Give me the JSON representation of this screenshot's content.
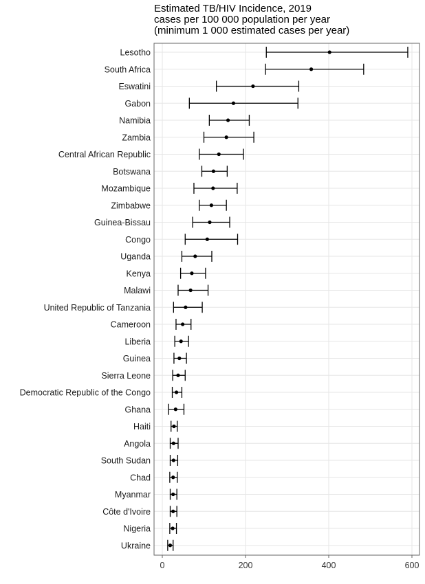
{
  "chart_data": {
    "type": "scatter",
    "subtype": "point-with-error-bars (dot plot)",
    "title": "Estimated TB/HIV Incidence, 2019",
    "subtitle_lines": [
      "cases per 100 000 population per year",
      "(minimum 1 000 estimated cases per year)"
    ],
    "xlabel": "",
    "ylabel": "",
    "xlim": [
      0,
      600
    ],
    "xticks": [
      0,
      200,
      400,
      600
    ],
    "xtick_labels": [
      "0",
      "200",
      "400",
      "600"
    ],
    "grid": true,
    "legend": "none",
    "categories": [
      "Lesotho",
      "South Africa",
      "Eswatini",
      "Gabon",
      "Namibia",
      "Zambia",
      "Central African Republic",
      "Botswana",
      "Mozambique",
      "Zimbabwe",
      "Guinea-Bissau",
      "Congo",
      "Uganda",
      "Kenya",
      "Malawi",
      "United Republic of Tanzania",
      "Cameroon",
      "Liberia",
      "Guinea",
      "Sierra Leone",
      "Democratic Republic of the Congo",
      "Ghana",
      "Haiti",
      "Angola",
      "South Sudan",
      "Chad",
      "Myanmar",
      "Côte d'Ivoire",
      "Nigeria",
      "Ukraine"
    ],
    "values": [
      402,
      358,
      218,
      171,
      158,
      154,
      136,
      123,
      122,
      118,
      114,
      108,
      79,
      71,
      68,
      56,
      49,
      45,
      41,
      38,
      34,
      32,
      28,
      27,
      27,
      26,
      26,
      26,
      25,
      19
    ],
    "lower": [
      250,
      248,
      130,
      65,
      113,
      100,
      89,
      95,
      76,
      89,
      73,
      55,
      47,
      44,
      38,
      27,
      33,
      30,
      28,
      25,
      24,
      15,
      21,
      19,
      19,
      18,
      19,
      19,
      18,
      13
    ],
    "upper": [
      590,
      484,
      328,
      326,
      209,
      220,
      195,
      156,
      180,
      154,
      162,
      181,
      119,
      104,
      110,
      96,
      69,
      63,
      58,
      55,
      47,
      52,
      36,
      38,
      37,
      36,
      35,
      35,
      34,
      26
    ]
  },
  "colors": {
    "point": "#000000",
    "errorbar": "#000000",
    "grid": "#e6e6e6",
    "axis": "#666666"
  }
}
